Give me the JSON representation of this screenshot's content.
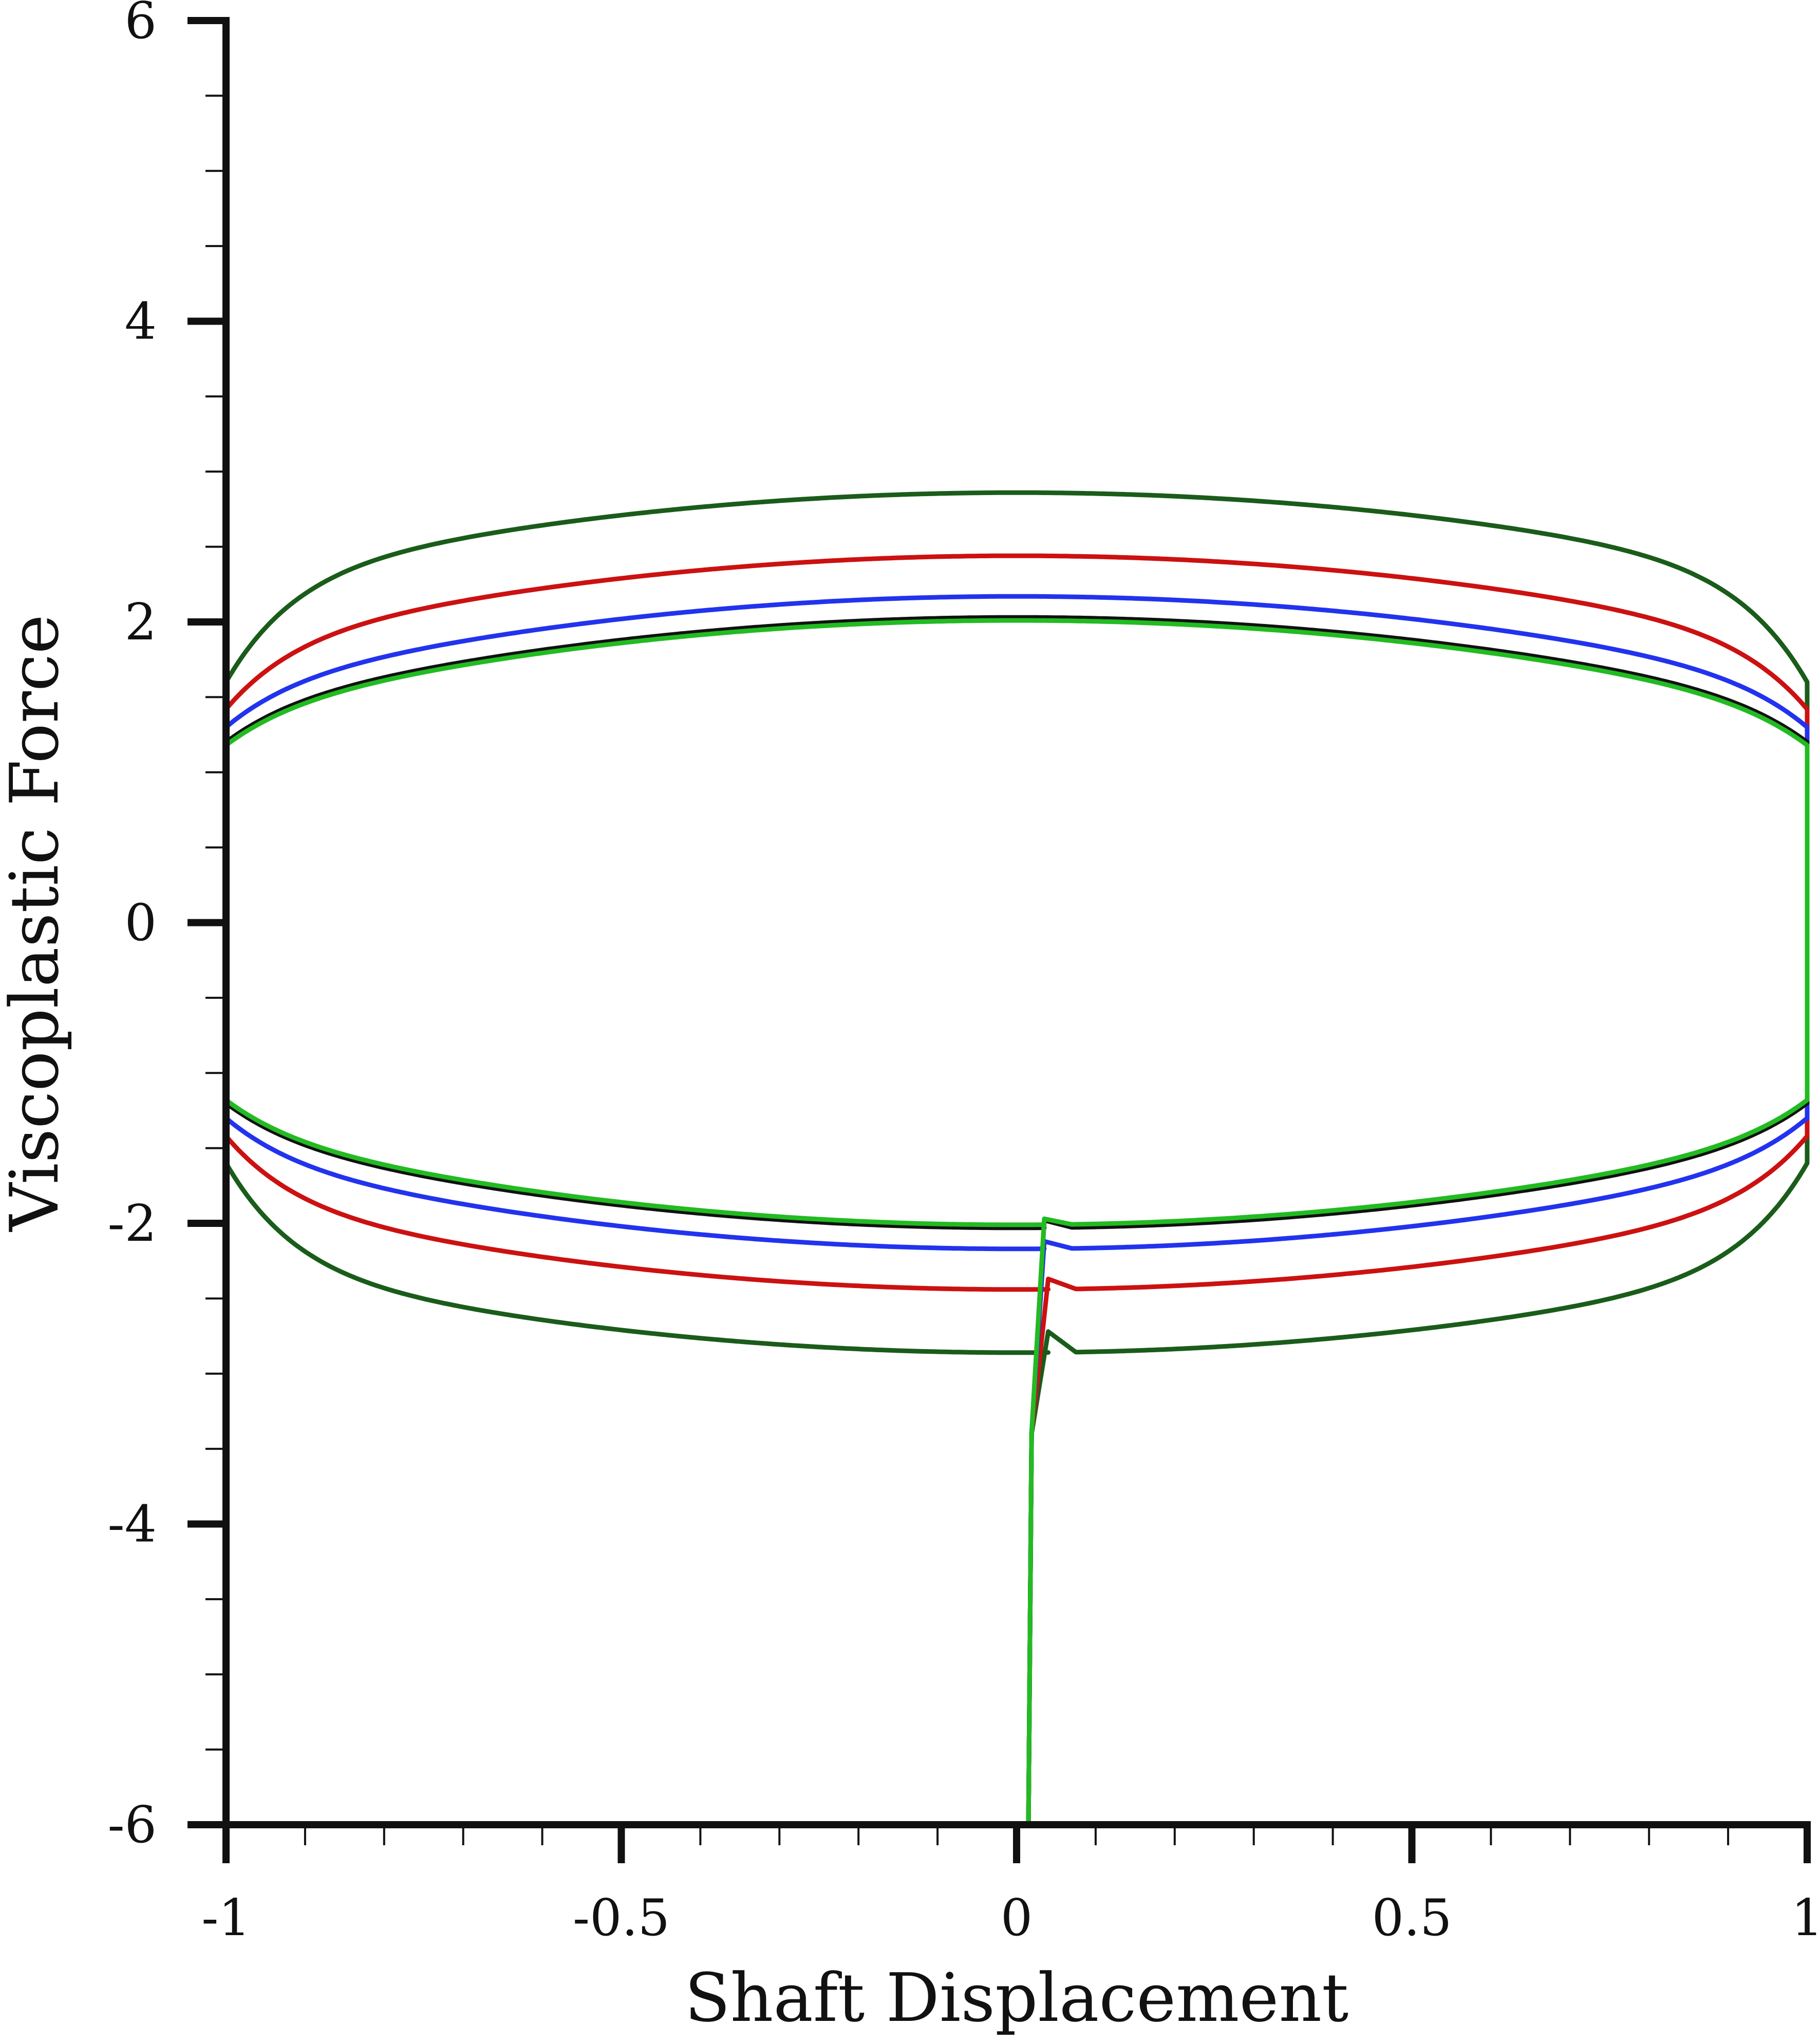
{
  "chart_data": {
    "type": "line",
    "title": "",
    "xlabel": "Shaft Displacement",
    "ylabel": "Viscoplastic Force",
    "xlim": [
      -1,
      1
    ],
    "ylim": [
      -6,
      6
    ],
    "x_ticks": [
      "-1",
      "-0.5",
      "0",
      "0.5",
      "1"
    ],
    "y_ticks": [
      "6",
      "4",
      "2",
      "0",
      "-2",
      "-4",
      "-6"
    ],
    "x_minor_step": 0.1,
    "y_minor_step": 0.5,
    "grid": false,
    "legend": "none",
    "series": [
      {
        "color": "#1a5c1a",
        "start_x": 0.015,
        "start_y": -6.0,
        "initial_peak": [
          0.04,
          -2.72
        ],
        "plateau": 2.86,
        "edge_value": 1.6,
        "curvature": 0.6,
        "points": [
          [
            0.015,
            -6.0
          ],
          [
            0.018,
            -3.4
          ],
          [
            0.04,
            -2.72
          ],
          [
            0.07,
            -2.84
          ],
          [
            0.5,
            -2.55
          ],
          [
            1.0,
            -1.7
          ],
          [
            1.0,
            1.6
          ],
          [
            0.5,
            2.6
          ],
          [
            0.0,
            2.86
          ],
          [
            -0.5,
            2.6
          ],
          [
            -1.0,
            1.6
          ],
          [
            -1.0,
            -1.65
          ],
          [
            -0.5,
            -2.6
          ],
          [
            0.0,
            -2.86
          ],
          [
            0.04,
            -2.84
          ]
        ]
      },
      {
        "color": "#cc1111",
        "start_x": 0.015,
        "start_y": -6.0,
        "initial_peak": [
          0.04,
          -2.37
        ],
        "plateau": 2.44,
        "edge_value": 1.42,
        "curvature": 0.6,
        "points": [
          [
            0.015,
            -6.0
          ],
          [
            0.018,
            -3.4
          ],
          [
            0.04,
            -2.37
          ],
          [
            0.07,
            -2.43
          ],
          [
            0.5,
            -2.2
          ],
          [
            1.0,
            -1.5
          ],
          [
            1.0,
            1.42
          ],
          [
            0.5,
            2.22
          ],
          [
            0.0,
            2.44
          ],
          [
            -0.5,
            2.22
          ],
          [
            -1.0,
            1.42
          ],
          [
            -1.0,
            -1.45
          ],
          [
            -0.5,
            -2.22
          ],
          [
            0.0,
            -2.44
          ],
          [
            0.04,
            -2.43
          ]
        ]
      },
      {
        "color": "#2233ee",
        "start_x": 0.015,
        "start_y": -6.0,
        "initial_peak": [
          0.035,
          -2.12
        ],
        "plateau": 2.17,
        "edge_value": 1.3,
        "curvature": 0.6,
        "points": [
          [
            0.015,
            -6.0
          ],
          [
            0.018,
            -3.4
          ],
          [
            0.035,
            -2.12
          ],
          [
            0.07,
            -2.17
          ],
          [
            0.5,
            -1.98
          ],
          [
            1.0,
            -1.35
          ],
          [
            1.0,
            1.3
          ],
          [
            0.5,
            1.98
          ],
          [
            0.0,
            2.17
          ],
          [
            -0.5,
            1.98
          ],
          [
            -1.0,
            1.3
          ],
          [
            -1.0,
            -1.32
          ],
          [
            -0.5,
            -1.98
          ],
          [
            0.0,
            -2.17
          ],
          [
            0.04,
            -2.17
          ]
        ]
      },
      {
        "color": "#111111",
        "start_x": 0.015,
        "start_y": -6.0,
        "initial_peak": [
          0.035,
          -1.98
        ],
        "plateau": 2.03,
        "edge_value": 1.2,
        "curvature": 0.6,
        "points": [
          [
            0.015,
            -6.0
          ],
          [
            0.018,
            -3.4
          ],
          [
            0.035,
            -1.98
          ],
          [
            0.07,
            -2.03
          ],
          [
            0.5,
            -1.86
          ],
          [
            1.0,
            -1.25
          ],
          [
            1.0,
            1.2
          ],
          [
            0.5,
            1.86
          ],
          [
            0.0,
            2.03
          ],
          [
            -0.5,
            1.86
          ],
          [
            -1.0,
            1.2
          ],
          [
            -1.0,
            -1.2
          ],
          [
            -0.5,
            -1.86
          ],
          [
            0.0,
            -2.03
          ],
          [
            0.04,
            -2.03
          ]
        ]
      },
      {
        "color": "#22bb22",
        "start_x": 0.015,
        "start_y": -6.0,
        "initial_peak": [
          0.035,
          -1.97
        ],
        "plateau": 2.01,
        "edge_value": 1.18,
        "curvature": 0.6,
        "points": [
          [
            0.015,
            -6.0
          ],
          [
            0.018,
            -3.4
          ],
          [
            0.035,
            -1.97
          ],
          [
            0.07,
            -2.01
          ],
          [
            0.5,
            -1.84
          ],
          [
            1.0,
            -1.23
          ],
          [
            1.0,
            1.18
          ],
          [
            0.5,
            1.84
          ],
          [
            0.0,
            2.01
          ],
          [
            -0.5,
            1.84
          ],
          [
            -1.0,
            1.18
          ],
          [
            -1.0,
            -1.18
          ],
          [
            -0.5,
            -1.84
          ],
          [
            0.0,
            -2.01
          ],
          [
            0.04,
            -2.01
          ]
        ]
      }
    ]
  }
}
